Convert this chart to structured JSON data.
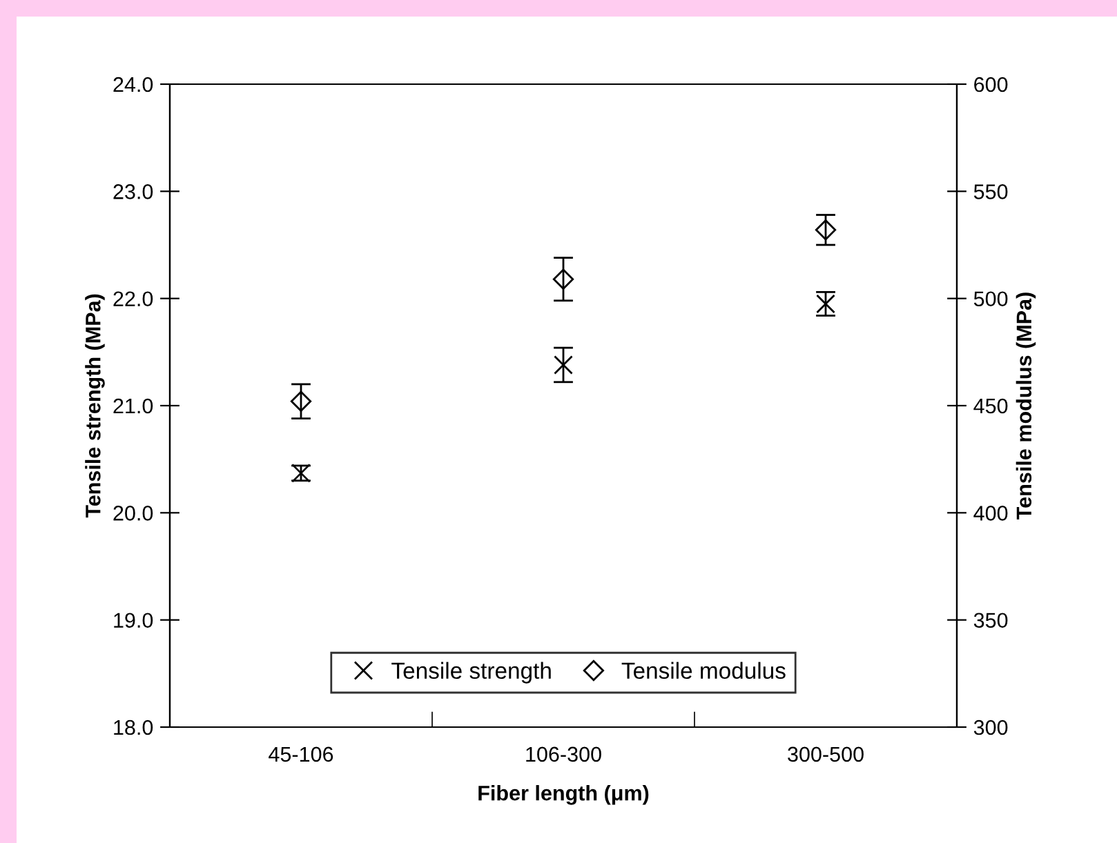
{
  "chart_data": {
    "type": "scatter",
    "xlabel": "Fiber length (μm)",
    "ylabel": "Tensile strength (MPa)",
    "y2label": "Tensile modulus (MPa)",
    "categories": [
      "45-106",
      "106-300",
      "300-500"
    ],
    "series": [
      {
        "name": "Tensile strength",
        "color": "#000000",
        "marker": "cross",
        "values": [
          20.37,
          21.38,
          21.95
        ],
        "errors": [
          0.07,
          0.16,
          0.11
        ]
      },
      {
        "name": "Tensile modulus",
        "color": "#000000",
        "marker": "diamond",
        "axis": "y2",
        "values": [
          452,
          509,
          532
        ],
        "errors": [
          8,
          10,
          7
        ]
      }
    ],
    "ylim": [
      18,
      24
    ],
    "yticks": [
      {
        "value": 18,
        "label": "18.0"
      },
      {
        "value": 19,
        "label": "19.0"
      },
      {
        "value": 20,
        "label": "20.0"
      },
      {
        "value": 21,
        "label": "21.0"
      },
      {
        "value": 22,
        "label": "22.0"
      },
      {
        "value": 23,
        "label": "23.0"
      },
      {
        "value": 24,
        "label": "24.0"
      }
    ],
    "y2lim": [
      300,
      600
    ],
    "y2ticks": [
      300,
      350,
      400,
      450,
      500,
      550,
      600
    ],
    "legend": "bottom",
    "grid": false
  }
}
